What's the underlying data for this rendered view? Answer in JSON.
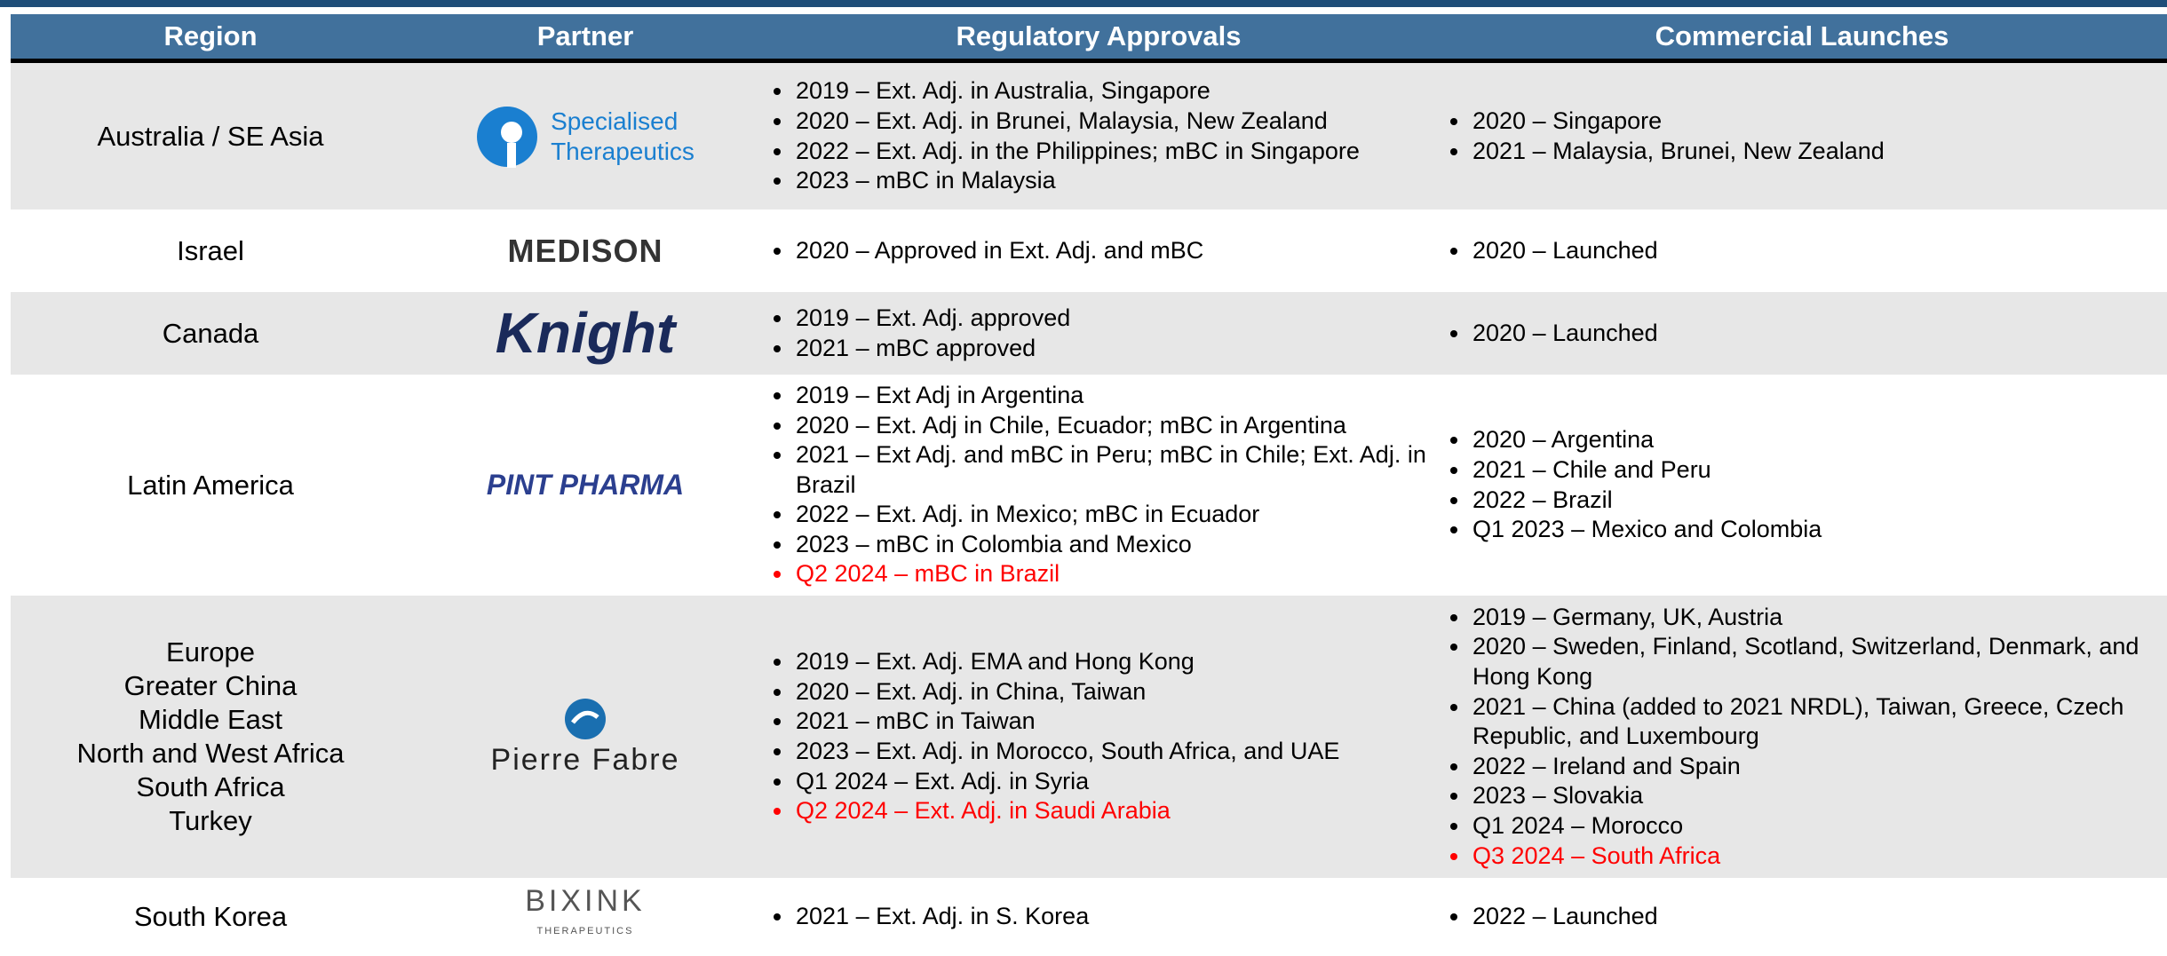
{
  "table": {
    "headers": [
      "Region",
      "Partner",
      "Regulatory Approvals",
      "Commercial Launches"
    ],
    "rows": [
      {
        "region": [
          "Australia / SE Asia"
        ],
        "partner": [
          "Specialised",
          "Therapeutics"
        ],
        "approvals": [
          "2019 – Ext. Adj. in Australia, Singapore",
          "2020 – Ext. Adj. in Brunei, Malaysia, New Zealand",
          "2022 – Ext. Adj. in the Philippines; mBC in Singapore",
          "2023 – mBC in Malaysia"
        ],
        "launches": [
          "2020 – Singapore",
          "2021 – Malaysia, Brunei, New Zealand"
        ]
      },
      {
        "region": [
          "Israel"
        ],
        "partner": [
          "MEDISON"
        ],
        "approvals": [
          "2020 –  Approved in Ext. Adj. and mBC"
        ],
        "launches": [
          "2020 – Launched"
        ]
      },
      {
        "region": [
          "Canada"
        ],
        "partner": [
          "Knight"
        ],
        "approvals": [
          "2019 – Ext. Adj. approved",
          "2021 – mBC approved"
        ],
        "launches": [
          "2020 – Launched"
        ]
      },
      {
        "region": [
          "Latin America"
        ],
        "partner": [
          "PINT PHARMA"
        ],
        "approvals": [
          "2019 –  Ext Adj in Argentina",
          "2020 –  Ext. Adj in Chile, Ecuador; mBC in Argentina",
          "2021 – Ext Adj. and mBC in Peru; mBC in Chile; Ext. Adj. in Brazil",
          "2022 – Ext. Adj. in Mexico; mBC in Ecuador",
          "2023 – mBC in Colombia and Mexico",
          {
            "text": "Q2 2024 – mBC in Brazil",
            "color": "#ff0000"
          }
        ],
        "launches": [
          "2020 – Argentina",
          "2021 – Chile and Peru",
          "2022 – Brazil",
          "Q1 2023 – Mexico and Colombia"
        ]
      },
      {
        "region": [
          "Europe",
          "Greater China",
          "Middle East",
          "North and West Africa",
          "South Africa",
          "Turkey"
        ],
        "partner": [
          "Pierre Fabre"
        ],
        "approvals": [
          "2019 – Ext. Adj. EMA and Hong Kong",
          "2020 – Ext. Adj. in China, Taiwan",
          "2021 – mBC in Taiwan",
          "2023 – Ext. Adj. in Morocco, South Africa, and UAE",
          "Q1 2024 – Ext. Adj. in Syria",
          {
            "text": "Q2 2024 – Ext. Adj. in Saudi Arabia",
            "color": "#ff0000"
          }
        ],
        "launches": [
          "2019 – Germany, UK, Austria",
          "2020 – Sweden, Finland, Scotland, Switzerland, Denmark, and Hong Kong",
          "2021  – China (added to 2021 NRDL), Taiwan, Greece, Czech Republic, and Luxembourg",
          "2022  – Ireland and Spain",
          "2023  – Slovakia",
          "Q1 2024  – Morocco",
          {
            "text": "Q3 2024 – South Africa",
            "color": "#ff0000"
          }
        ]
      },
      {
        "region": [
          "South Korea"
        ],
        "partner": [
          "BIXINK",
          "THERAPEUTICS"
        ],
        "approvals": [
          "2021 – Ext. Adj. in S. Korea"
        ],
        "launches": [
          "2022 – Launched"
        ]
      }
    ]
  }
}
